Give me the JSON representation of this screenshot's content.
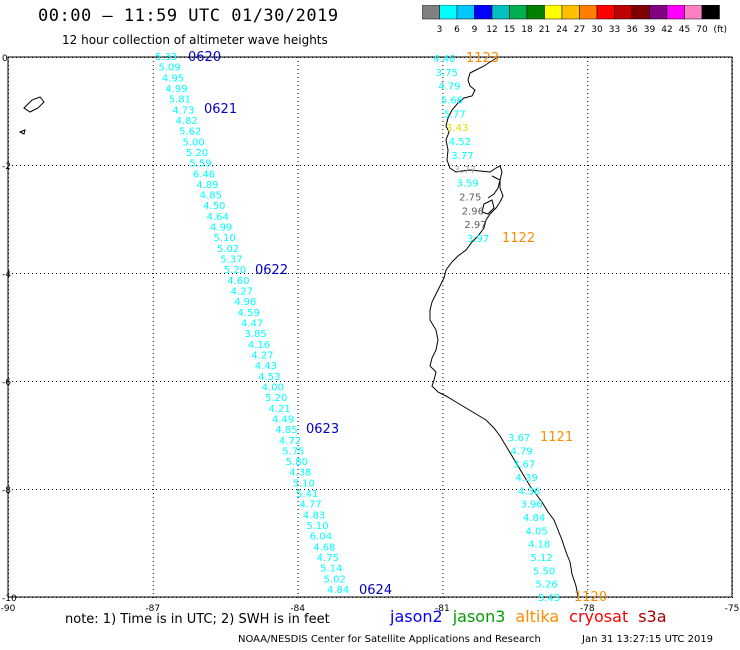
{
  "header": {
    "title": "00:00 — 11:59 UTC 01/30/2019",
    "subtitle": "12 hour collection of altimeter wave heights"
  },
  "legend": {
    "values": [
      "3",
      "6",
      "9",
      "12",
      "15",
      "18",
      "21",
      "24",
      "27",
      "30",
      "33",
      "36",
      "39",
      "42",
      "45",
      "70"
    ],
    "unit": "(ft)",
    "colors": [
      "#808080",
      "#00ffff",
      "#00c8ff",
      "#0000ff",
      "#00c0c0",
      "#00b050",
      "#008000",
      "#ffff00",
      "#ffc000",
      "#ff8000",
      "#ff0000",
      "#c00000",
      "#800000",
      "#800080",
      "#ff00ff",
      "#ff80c0",
      "#000000"
    ]
  },
  "axes": {
    "x_ticks": [
      "-90",
      "-87",
      "-84",
      "-81",
      "-78",
      "-75"
    ],
    "y_ticks": [
      "0",
      "-2",
      "-4",
      "-6",
      "-8",
      "-10"
    ]
  },
  "tracks": {
    "west": {
      "color": "#00ffff",
      "values": [
        "5.33",
        "5.09",
        "4.95",
        "4.99",
        "5.81",
        "4.73",
        "4.82",
        "5.62",
        "5.00",
        "5.20",
        "5.59",
        "6.46",
        "4.89",
        "4.85",
        "4.50",
        "4.64",
        "4.99",
        "5.10",
        "5.02",
        "5.37",
        "5.20",
        "4.60",
        "4.27",
        "4.98",
        "4.59",
        "4.47",
        "3.85",
        "4.16",
        "4.27",
        "4.43",
        "4.53",
        "4.00",
        "5.20",
        "4.21",
        "4.49",
        "4.85",
        "4.72",
        "5.75",
        "5.80",
        "4.38",
        "5.10",
        "5.41",
        "4.77",
        "4.83",
        "5.10",
        "6.04",
        "4.68",
        "4.75",
        "5.14",
        "5.02",
        "4.84"
      ]
    },
    "north_coast": {
      "color": "#00ffff",
      "values": [
        "4.46",
        "3.75",
        "4.79",
        "5.66",
        "5.77",
        "3.43",
        "4.52",
        "3.77",
        "3.77",
        "3.59",
        "2.75",
        "2.96",
        "2.97",
        "3.97"
      ]
    },
    "south_coast": {
      "color": "#00ffff",
      "values": [
        "3.67",
        "4.79",
        "3.67",
        "4.39",
        "4.36",
        "3.96",
        "4.84",
        "4.05",
        "4.18",
        "5.12",
        "5.50",
        "5.26",
        "5.43"
      ]
    }
  },
  "time_labels": {
    "t0620": "0620",
    "t0621": "0621",
    "t0622": "0622",
    "t0623": "0623",
    "t0624": "0624",
    "t1123": "1123",
    "t1122": "1122",
    "t1121": "1121",
    "t1120": "1120"
  },
  "footer": {
    "note": "note: 1) Time is in UTC; 2) SWH is in feet",
    "satellites": [
      {
        "name": "jason2",
        "color": "#0000ff"
      },
      {
        "name": "jason3",
        "color": "#00a000"
      },
      {
        "name": "altika",
        "color": "#ff8c00"
      },
      {
        "name": "cryosat",
        "color": "#ff0000"
      },
      {
        "name": "s3a",
        "color": "#a00000"
      }
    ],
    "credit": "NOAA/NESDIS Center for Satellite Applications and Research",
    "timestamp": "Jan 31 13:27:15 UTC 2019"
  }
}
